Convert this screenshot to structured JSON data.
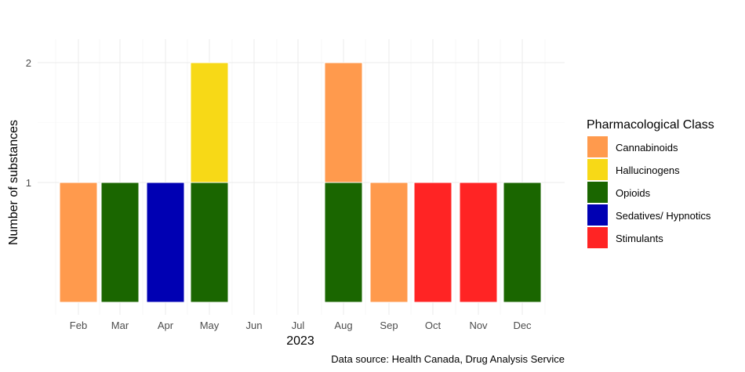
{
  "chart_data": {
    "type": "bar",
    "stacked": true,
    "categories": [
      "Feb",
      "Mar",
      "Apr",
      "May",
      "Jun",
      "Jul",
      "Aug",
      "Sep",
      "Oct",
      "Nov",
      "Dec"
    ],
    "series": [
      {
        "name": "Opioids",
        "color": "#1a6600",
        "values": [
          0,
          1,
          0,
          1,
          0,
          0,
          1,
          0,
          0,
          0,
          1
        ]
      },
      {
        "name": "Sedatives/ Hypnotics",
        "color": "#0000b3",
        "values": [
          0,
          0,
          1,
          0,
          0,
          0,
          0,
          0,
          0,
          0,
          0
        ]
      },
      {
        "name": "Cannabinoids",
        "color": "#ff9a4d",
        "values": [
          1,
          0,
          0,
          0,
          0,
          0,
          1,
          1,
          0,
          0,
          0
        ]
      },
      {
        "name": "Hallucinogens",
        "color": "#f7d917",
        "values": [
          0,
          0,
          0,
          1,
          0,
          0,
          0,
          0,
          0,
          0,
          0
        ]
      },
      {
        "name": "Stimulants",
        "color": "#ff2424",
        "values": [
          0,
          0,
          0,
          0,
          0,
          0,
          0,
          0,
          1,
          1,
          0
        ]
      }
    ],
    "xlabel": "2023",
    "ylabel": "Number of substances",
    "yticks": [
      1,
      2
    ],
    "ylim": [
      0,
      2.2
    ],
    "grid": true,
    "legend": {
      "title": "Pharmacological Class",
      "position": "right",
      "items": [
        {
          "label": "Cannabinoids",
          "color": "#ff9a4d"
        },
        {
          "label": "Hallucinogens",
          "color": "#f7d917"
        },
        {
          "label": "Opioids",
          "color": "#1a6600"
        },
        {
          "label": "Sedatives/ Hypnotics",
          "color": "#0000b3"
        },
        {
          "label": "Stimulants",
          "color": "#ff2424"
        }
      ]
    },
    "caption": "Data source: Health Canada, Drug Analysis Service"
  }
}
